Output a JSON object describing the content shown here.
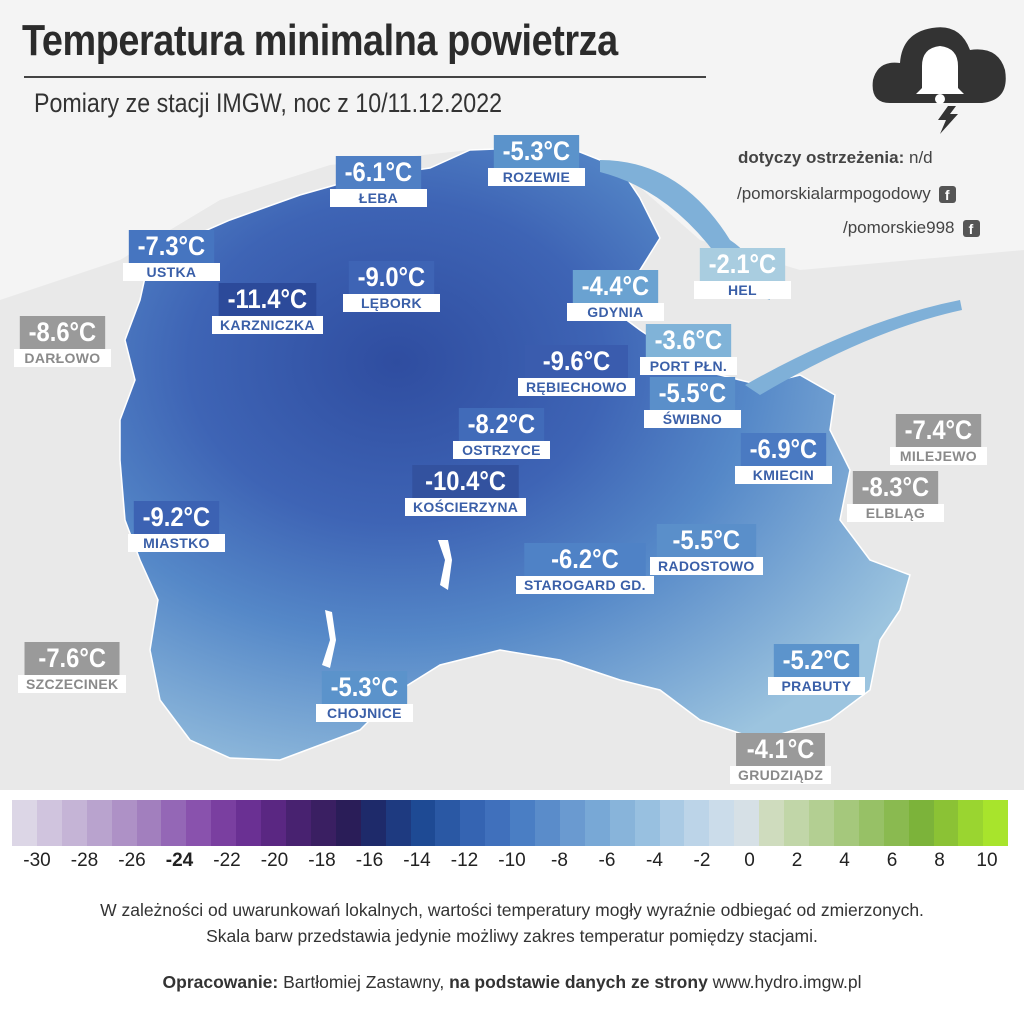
{
  "title": "Temperatura minimalna powietrza",
  "subtitle": "Pomiary ze stacji IMGW, noc z 10/11.12.2022",
  "warning": {
    "label": "dotyczy ostrzeżenia:",
    "value": "n/d"
  },
  "social": [
    {
      "handle": "/pomorskialarmpogodowy",
      "icon": "facebook-icon"
    },
    {
      "handle": "/pomorskie998",
      "icon": "facebook-icon"
    }
  ],
  "logo_icon": "cloud-bell-lightning-icon",
  "stations": [
    {
      "id": "leba",
      "value": "-6.1°C",
      "name": "ŁEBA",
      "color": "#4f7fc4",
      "inside": true
    },
    {
      "id": "rozewie",
      "value": "-5.3°C",
      "name": "ROZEWIE",
      "color": "#5b93cb",
      "inside": true
    },
    {
      "id": "ustka",
      "value": "-7.3°C",
      "name": "USTKA",
      "color": "#4675c0",
      "inside": true
    },
    {
      "id": "hel",
      "value": "-2.1°C",
      "name": "HEL",
      "color": "#a9cde0",
      "inside": true
    },
    {
      "id": "darlowo",
      "value": "-8.6°C",
      "name": "DARŁOWO",
      "color": "#9a9a9a",
      "inside": false
    },
    {
      "id": "karzniczka",
      "value": "-11.4°C",
      "name": "KARZNICZKA",
      "color": "#2c4a9a",
      "inside": true
    },
    {
      "id": "lebork",
      "value": "-9.0°C",
      "name": "LĘBORK",
      "color": "#3e64b5",
      "inside": true
    },
    {
      "id": "gdynia",
      "value": "-4.4°C",
      "name": "GDYNIA",
      "color": "#6aa2d1",
      "inside": true
    },
    {
      "id": "portpln",
      "value": "-3.6°C",
      "name": "PORT PŁN.",
      "color": "#80b3d8",
      "inside": true
    },
    {
      "id": "rebiechowo",
      "value": "-9.6°C",
      "name": "RĘBIECHOWO",
      "color": "#3a5cae",
      "inside": true
    },
    {
      "id": "swibno",
      "value": "-5.5°C",
      "name": "ŚWIBNO",
      "color": "#5a8fca",
      "inside": true
    },
    {
      "id": "milejewo",
      "value": "-7.4°C",
      "name": "MILEJEWO",
      "color": "#9a9a9a",
      "inside": false
    },
    {
      "id": "ostrzyce",
      "value": "-8.2°C",
      "name": "OSTRZYCE",
      "color": "#416bb9",
      "inside": true
    },
    {
      "id": "kmiecin",
      "value": "-6.9°C",
      "name": "KMIECIN",
      "color": "#4a7ac2",
      "inside": true
    },
    {
      "id": "elblag",
      "value": "-8.3°C",
      "name": "ELBLĄG",
      "color": "#9a9a9a",
      "inside": false
    },
    {
      "id": "koscierzyna",
      "value": "-10.4°C",
      "name": "KOŚCIERZYNA",
      "color": "#33529f",
      "inside": true
    },
    {
      "id": "miastko",
      "value": "-9.2°C",
      "name": "MIASTKO",
      "color": "#3c62b3",
      "inside": true
    },
    {
      "id": "radostowo",
      "value": "-5.5°C",
      "name": "RADOSTOWO",
      "color": "#5a8fca",
      "inside": true
    },
    {
      "id": "starogard",
      "value": "-6.2°C",
      "name": "STAROGARD GD.",
      "color": "#4f82c6",
      "inside": true
    },
    {
      "id": "szczecinek",
      "value": "-7.6°C",
      "name": "SZCZECINEK",
      "color": "#9a9a9a",
      "inside": false
    },
    {
      "id": "prabuty",
      "value": "-5.2°C",
      "name": "PRABUTY",
      "color": "#5c94cc",
      "inside": true
    },
    {
      "id": "chojnice",
      "value": "-5.3°C",
      "name": "CHOJNICE",
      "color": "#5b93cb",
      "inside": true
    },
    {
      "id": "grudziadz",
      "value": "-4.1°C",
      "name": "GRUDZIĄDZ",
      "color": "#9a9a9a",
      "inside": false
    }
  ],
  "legend": {
    "colors": [
      "#dcd6e6",
      "#d0c4de",
      "#c5b4d6",
      "#b9a3ce",
      "#ae91c6",
      "#a27fbe",
      "#9467b6",
      "#8952ad",
      "#7a3fa0",
      "#6a3093",
      "#5a2782",
      "#482270",
      "#3a1f62",
      "#2a1d58",
      "#1e2a6a",
      "#1e3a80",
      "#1e4a94",
      "#2a58a4",
      "#3564b2",
      "#4070bc",
      "#4a7ec4",
      "#5a8cca",
      "#6a9ad0",
      "#78a8d6",
      "#88b4da",
      "#98c0e0",
      "#aacae4",
      "#bcd4e8",
      "#cbdcea",
      "#d6e0e6",
      "#cfdcbe",
      "#c1d6a8",
      "#b3cf92",
      "#a5c87c",
      "#97c166",
      "#8aba50",
      "#7cb33a",
      "#8bc235",
      "#9ad530",
      "#a8e42c"
    ],
    "ticks": [
      "-30",
      "-28",
      "-26",
      "-24",
      "-22",
      "-20",
      "-18",
      "-16",
      "-14",
      "-12",
      "-10",
      "-8",
      "-6",
      "-4",
      "-2",
      "0",
      "2",
      "4",
      "6",
      "8",
      "10"
    ]
  },
  "notes": [
    "W zależności od uwarunkowań lokalnych, wartości temperatury mogły wyraźnie odbiegać od zmierzonych.",
    "Skala barw przedstawia jedynie możliwy zakres temperatur pomiędzy stacjami."
  ],
  "credit": {
    "label1": "Opracowanie:",
    "author": "Bartłomiej Zastawny,",
    "label2": "na podstawie danych ze strony",
    "source": "www.hydro.imgw.pl"
  }
}
